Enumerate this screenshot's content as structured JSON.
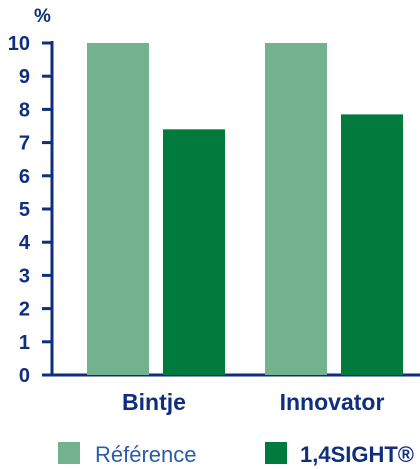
{
  "chart_data": {
    "type": "bar",
    "unit": "%",
    "categories": [
      "Bintje",
      "Innovator"
    ],
    "series": [
      {
        "name": "Référence",
        "values": [
          10,
          10
        ]
      },
      {
        "name": "1,4SIGHT®",
        "values": [
          7.4,
          7.85
        ]
      }
    ],
    "yticks": [
      "0",
      "1",
      "2",
      "3",
      "4",
      "5",
      "6",
      "7",
      "8",
      "9",
      "10"
    ],
    "ylim": [
      0,
      10
    ],
    "grid": false,
    "legend_position": "bottom",
    "colors": {
      "reference": "#72b28f",
      "treatment": "#007a3d",
      "axis": "#102e7e",
      "text": "#102e7e",
      "legend_text_ref": "#2a5caa"
    }
  }
}
